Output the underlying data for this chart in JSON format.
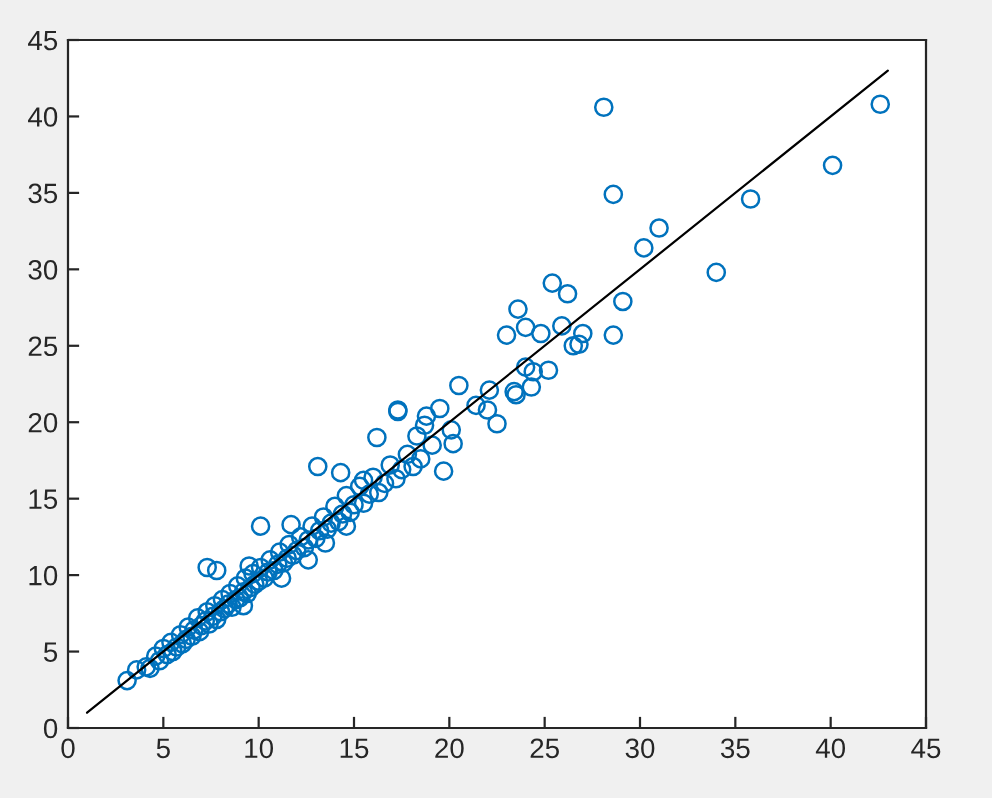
{
  "chart_data": {
    "type": "scatter",
    "xlim": [
      0,
      45
    ],
    "ylim": [
      0,
      45
    ],
    "xticks": [
      0,
      5,
      10,
      15,
      20,
      25,
      30,
      35,
      40,
      45
    ],
    "yticks": [
      0,
      5,
      10,
      15,
      20,
      25,
      30,
      35,
      40,
      45
    ],
    "grid": false,
    "marker": "circle",
    "series": [
      {
        "color": "#0072bd",
        "x": [
          28.1,
          42.6,
          40.1,
          28.6,
          35.8,
          31.0,
          30.2,
          34.0,
          25.4,
          26.2,
          29.1,
          23.6,
          24.0,
          24.8,
          23.0,
          25.9,
          27.0,
          26.8,
          26.5,
          28.6,
          24.0,
          25.2,
          24.4,
          23.4,
          23.5,
          24.3,
          20.5,
          22.1,
          22.0,
          22.5,
          21.4,
          17.3,
          19.5,
          18.8,
          18.7,
          18.3,
          20.1,
          20.2,
          16.2,
          19.1,
          19.7,
          13.1,
          10.1,
          7.3,
          3.1,
          3.6,
          4.1,
          4.3,
          4.6,
          4.8,
          5.0,
          5.2,
          5.4,
          5.5,
          5.7,
          5.9,
          6.0,
          6.2,
          6.3,
          6.5,
          6.6,
          6.8,
          6.9,
          7.0,
          7.2,
          7.3,
          7.4,
          7.6,
          7.7,
          7.8,
          8.0,
          8.1,
          8.2,
          8.4,
          8.5,
          8.6,
          8.8,
          8.9,
          9.0,
          9.2,
          9.3,
          9.4,
          9.6,
          9.7,
          9.8,
          10.0,
          10.1,
          10.3,
          10.5,
          10.6,
          10.8,
          11.0,
          11.1,
          11.3,
          11.5,
          11.6,
          11.8,
          12.0,
          12.2,
          12.4,
          12.6,
          12.8,
          13.0,
          13.2,
          13.4,
          13.6,
          13.8,
          14.0,
          14.2,
          14.4,
          14.6,
          14.8,
          15.0,
          15.3,
          15.5,
          15.8,
          16.0,
          16.3,
          16.6,
          16.9,
          17.2,
          17.5,
          17.8,
          18.1,
          18.5,
          7.8,
          9.5,
          11.7,
          14.3,
          15.5,
          17.3,
          12.6,
          13.5,
          11.2,
          9.2,
          14.6
        ],
        "values": [
          40.6,
          40.8,
          36.8,
          34.9,
          34.6,
          32.7,
          31.4,
          29.8,
          29.1,
          28.4,
          27.9,
          27.4,
          26.2,
          25.8,
          25.7,
          26.3,
          25.8,
          25.1,
          25.0,
          25.7,
          23.6,
          23.4,
          23.3,
          22.0,
          21.8,
          22.3,
          22.4,
          22.1,
          20.8,
          19.9,
          21.1,
          20.8,
          20.9,
          20.4,
          19.8,
          19.1,
          19.5,
          18.6,
          19.0,
          18.5,
          16.8,
          17.1,
          13.2,
          10.5,
          3.1,
          3.8,
          4.0,
          3.9,
          4.7,
          4.4,
          5.2,
          4.8,
          5.6,
          5.0,
          5.3,
          6.1,
          5.5,
          5.8,
          6.6,
          6.0,
          6.4,
          7.2,
          6.3,
          6.7,
          7.0,
          7.6,
          6.8,
          7.3,
          8.0,
          7.1,
          7.6,
          8.4,
          7.8,
          8.1,
          8.8,
          7.9,
          8.4,
          9.3,
          8.5,
          8.9,
          9.8,
          8.8,
          9.2,
          10.1,
          9.4,
          9.6,
          10.5,
          9.8,
          10.2,
          11.0,
          10.3,
          10.7,
          11.5,
          10.8,
          11.1,
          12.0,
          11.3,
          11.6,
          12.5,
          11.8,
          12.3,
          13.2,
          12.4,
          12.9,
          13.8,
          13.0,
          13.4,
          14.5,
          13.5,
          14.0,
          15.2,
          14.1,
          14.6,
          15.8,
          14.7,
          15.3,
          16.4,
          15.4,
          16.0,
          17.2,
          16.3,
          16.9,
          17.9,
          17.1,
          17.6,
          10.3,
          10.6,
          13.3,
          16.7,
          16.2,
          20.7,
          11.0,
          12.1,
          9.8,
          8.0,
          13.2
        ]
      },
      {
        "type": "line",
        "color": "#000000",
        "marker": "none",
        "x": [
          1,
          43
        ],
        "values": [
          1,
          43
        ]
      }
    ]
  }
}
